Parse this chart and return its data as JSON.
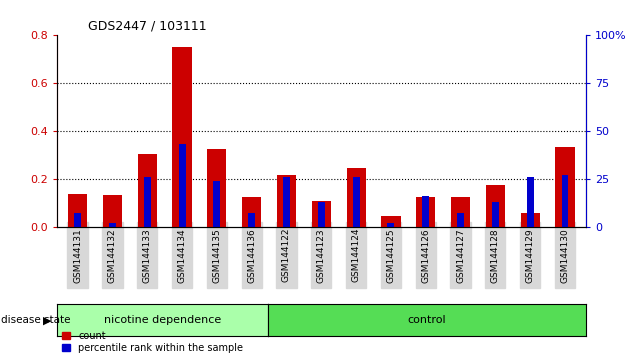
{
  "title": "GDS2447 / 103111",
  "categories": [
    "GSM144131",
    "GSM144132",
    "GSM144133",
    "GSM144134",
    "GSM144135",
    "GSM144136",
    "GSM144122",
    "GSM144123",
    "GSM144124",
    "GSM144125",
    "GSM144126",
    "GSM144127",
    "GSM144128",
    "GSM144129",
    "GSM144130"
  ],
  "count_values": [
    0.135,
    0.13,
    0.305,
    0.75,
    0.325,
    0.125,
    0.215,
    0.105,
    0.245,
    0.045,
    0.125,
    0.125,
    0.175,
    0.055,
    0.335
  ],
  "percentile_values_pct": [
    7,
    2,
    26,
    43,
    24,
    7,
    26,
    13,
    26,
    2,
    16,
    7,
    13,
    26,
    27
  ],
  "count_color": "#cc0000",
  "percentile_color": "#0000cc",
  "ylim_left": [
    0,
    0.8
  ],
  "ylim_right": [
    0,
    100
  ],
  "yticks_left": [
    0,
    0.2,
    0.4,
    0.6,
    0.8
  ],
  "yticks_right": [
    0,
    25,
    50,
    75,
    100
  ],
  "grid_values": [
    0.2,
    0.4,
    0.6
  ],
  "group1_label": "nicotine dependence",
  "group2_label": "control",
  "group1_color": "#aaffaa",
  "group2_color": "#55dd55",
  "disease_state_label": "disease state",
  "legend_count": "count",
  "legend_percentile": "percentile rank within the sample",
  "bar_width": 0.55,
  "blue_bar_width": 0.2,
  "n_group1": 6,
  "n_group2": 9
}
